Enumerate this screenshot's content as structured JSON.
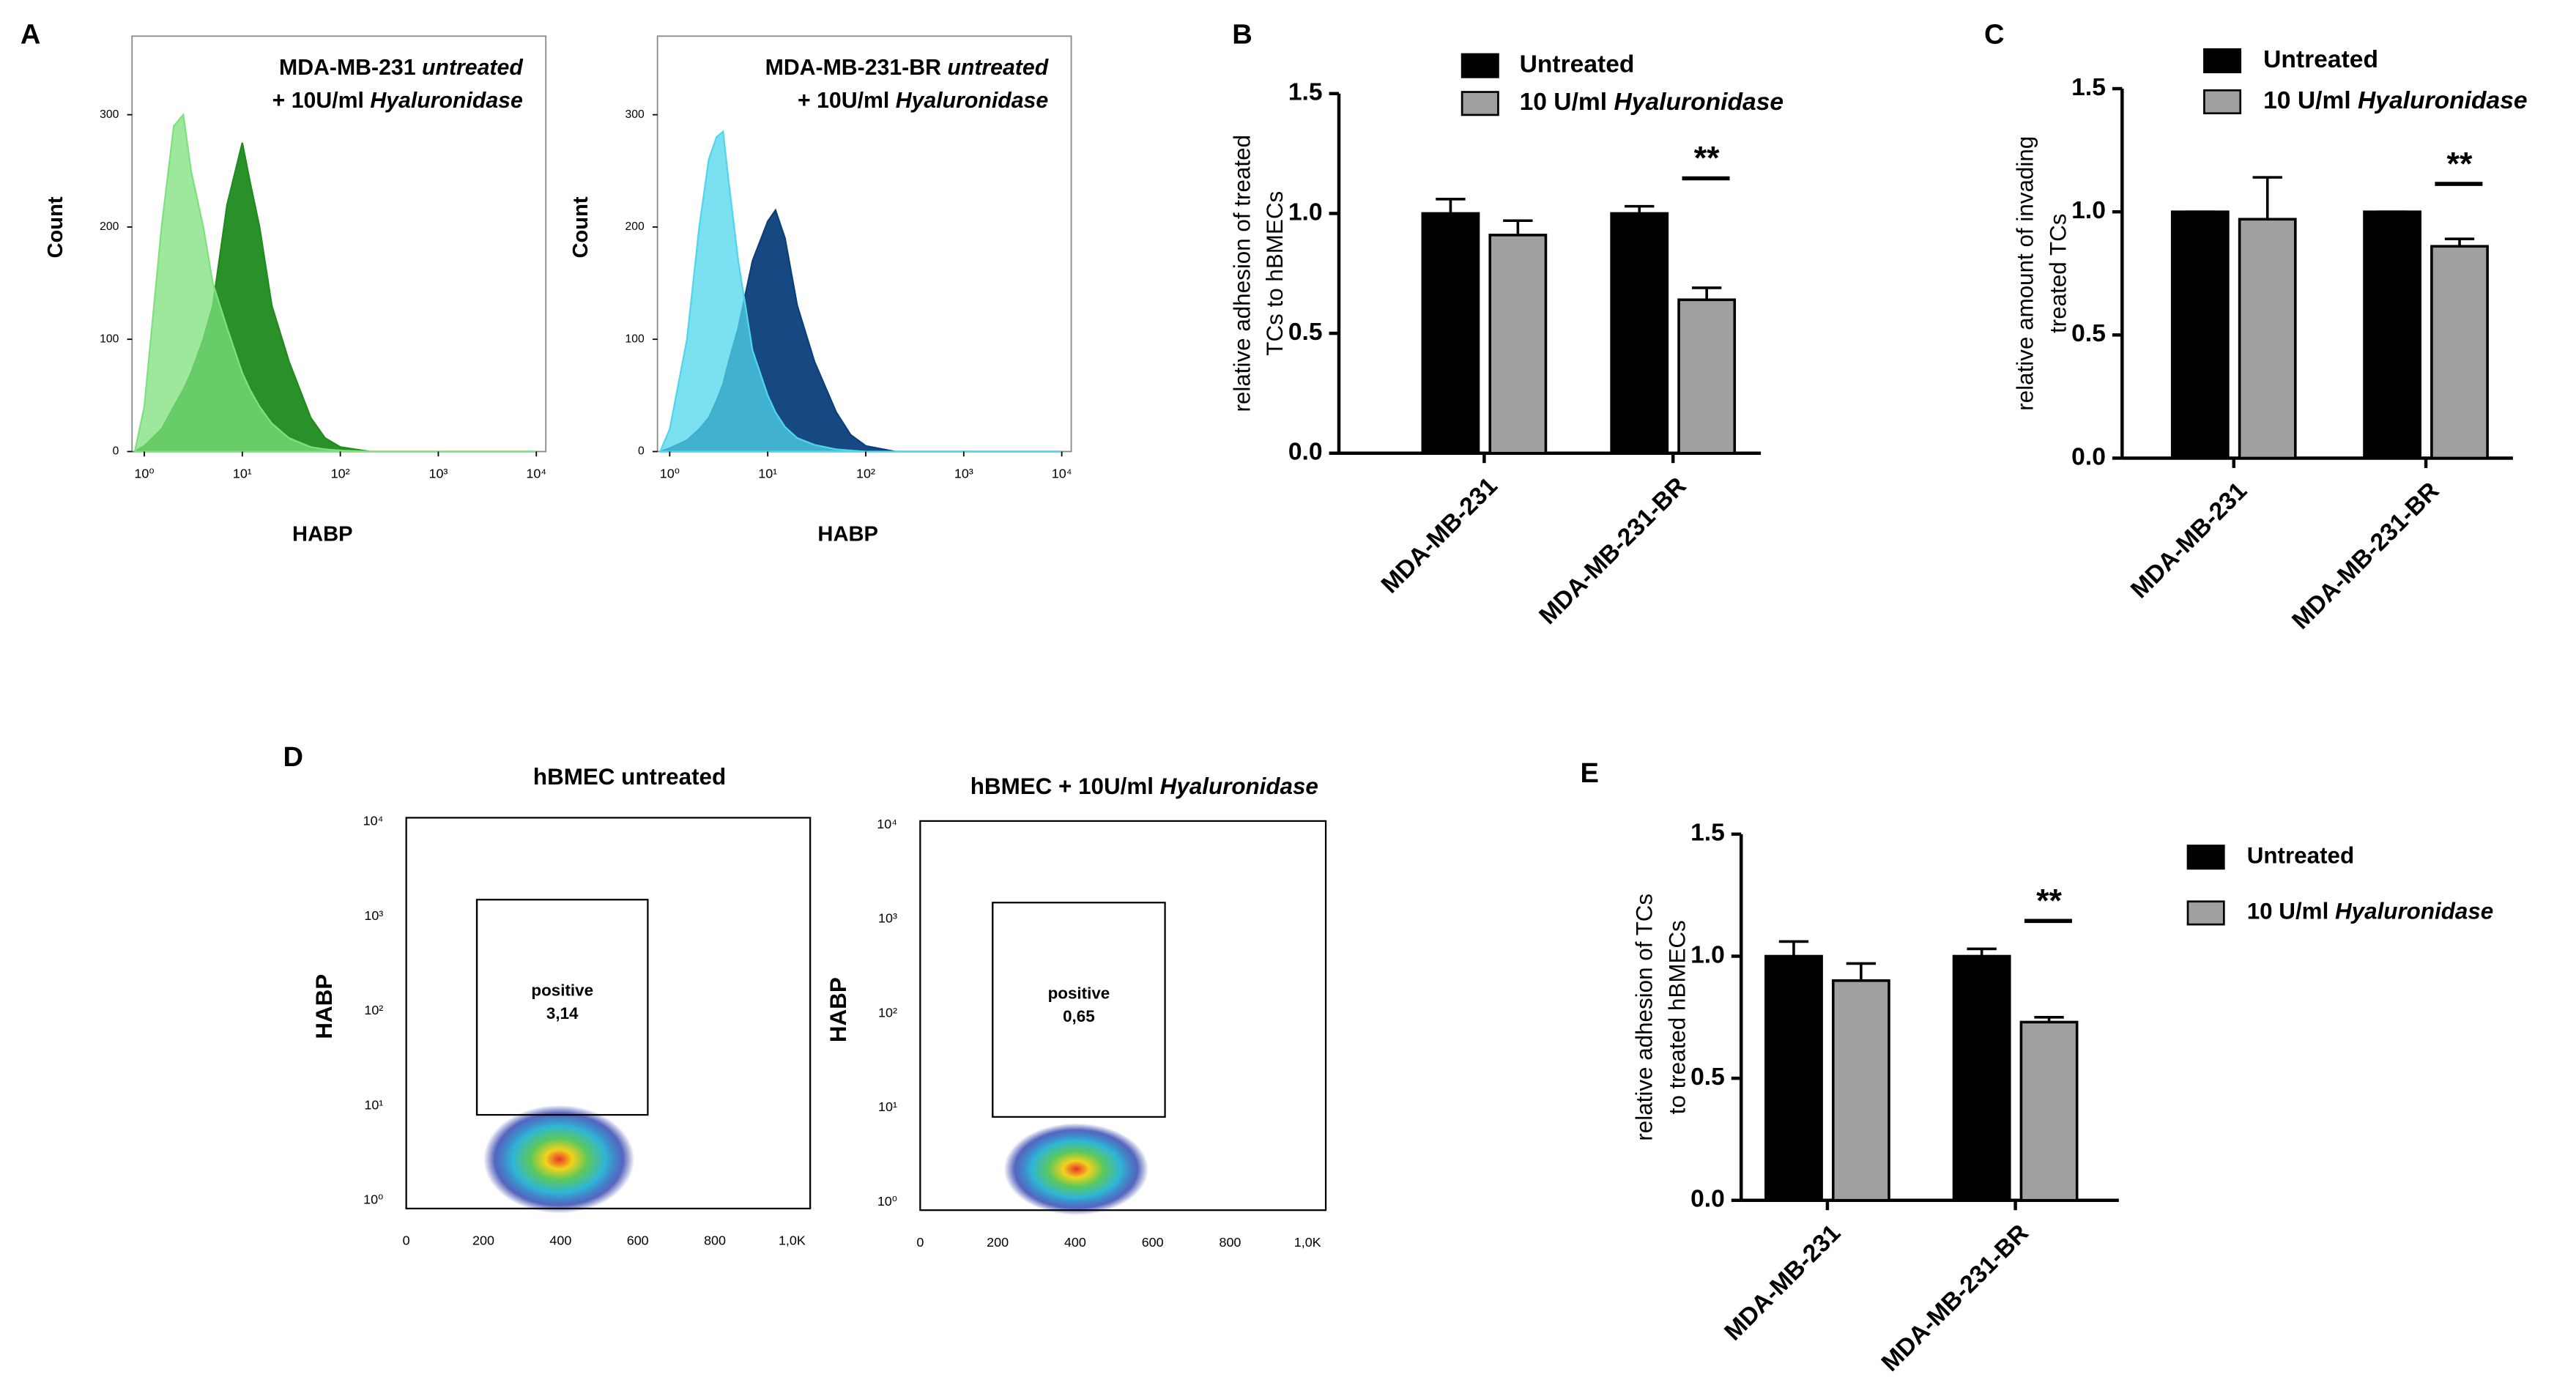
{
  "chart_data": [
    {
      "type": "histogram_area",
      "panel": "A",
      "x_label": "HABP",
      "y_label": "Count",
      "x_log": true,
      "x": [
        0.8,
        1,
        1.5,
        2,
        2.5,
        3,
        4,
        5,
        7,
        10,
        12,
        15,
        20,
        30,
        50,
        70,
        100,
        200,
        10000
      ],
      "xlim": [
        0.75,
        12500
      ],
      "ylim": [
        0,
        370
      ],
      "xticks": [
        {
          "value": 1,
          "label": "10⁰"
        },
        {
          "value": 10,
          "label": "10¹"
        },
        {
          "value": 100,
          "label": "10²"
        },
        {
          "value": 1000,
          "label": "10³"
        },
        {
          "value": 10000,
          "label": "10⁴"
        }
      ],
      "yticks": [
        0,
        100,
        200,
        300
      ],
      "series": [
        {
          "name": "MDA-MB-231 untreated",
          "color": "#1f8b1f",
          "label_color": "#3a8a3a",
          "values": [
            0,
            5,
            20,
            40,
            55,
            70,
            100,
            130,
            220,
            275,
            240,
            200,
            130,
            80,
            30,
            12,
            4,
            0,
            0
          ]
        },
        {
          "name": "+ 10U/ml Hyaluronidase",
          "color": "#7ee07e",
          "label_color": "#7ed67e",
          "values": [
            0,
            40,
            200,
            290,
            300,
            250,
            200,
            150,
            110,
            70,
            55,
            40,
            25,
            12,
            4,
            2,
            1,
            0,
            0
          ]
        }
      ]
    },
    {
      "type": "histogram_area",
      "x_label": "HABP",
      "y_label": "Count",
      "x_log": true,
      "x": [
        0.8,
        1,
        1.5,
        2,
        2.5,
        3,
        3.5,
        4,
        5,
        7,
        10,
        12,
        15,
        20,
        30,
        50,
        70,
        100,
        200,
        10000
      ],
      "xlim": [
        0.75,
        12500
      ],
      "ylim": [
        0,
        370
      ],
      "xticks": [
        {
          "value": 1,
          "label": "10⁰"
        },
        {
          "value": 10,
          "label": "10¹"
        },
        {
          "value": 100,
          "label": "10²"
        },
        {
          "value": 1000,
          "label": "10³"
        },
        {
          "value": 10000,
          "label": "10⁴"
        }
      ],
      "yticks": [
        0,
        100,
        200,
        300
      ],
      "series": [
        {
          "name": "MDA-MB-231-BR untreated",
          "color": "#0a3f7a",
          "label_color": "#2a5a9a",
          "values": [
            0,
            3,
            10,
            20,
            30,
            45,
            60,
            80,
            110,
            170,
            205,
            215,
            190,
            130,
            80,
            35,
            15,
            5,
            0,
            0
          ]
        },
        {
          "name": "+ 10U/ml Hyaluronidase",
          "color": "#4fd6ea",
          "label_color": "#2cc3dd",
          "values": [
            0,
            20,
            100,
            200,
            260,
            280,
            285,
            240,
            170,
            90,
            50,
            35,
            22,
            12,
            6,
            2,
            1,
            0,
            0,
            0
          ]
        }
      ]
    },
    {
      "type": "bar",
      "panel": "B",
      "y_label": [
        "relative adhesion of treated",
        "TCs to hBMECs"
      ],
      "categories": [
        "MDA-MB-231",
        "MDA-MB-231-BR"
      ],
      "ylim": [
        0,
        1.5
      ],
      "yticks": [
        {
          "value": 0,
          "label": "0.0"
        },
        0.5,
        {
          "value": 1,
          "label": "1.0"
        },
        1.5
      ],
      "series": [
        {
          "name": "Untreated",
          "color": "#000000",
          "values": [
            1.0,
            1.0
          ],
          "errors": [
            0.06,
            0.03
          ]
        },
        {
          "name": "10 U/ml Hyaluronidase",
          "color": "#a0a0a0",
          "values": [
            0.91,
            0.64
          ],
          "errors": [
            0.06,
            0.05
          ]
        }
      ],
      "annotations": [
        {
          "text": "**",
          "category": 1,
          "series": 1
        }
      ]
    },
    {
      "type": "bar",
      "panel": "C",
      "y_label": [
        "relative amount of invading",
        "treated TCs"
      ],
      "categories": [
        "MDA-MB-231",
        "MDA-MB-231-BR"
      ],
      "ylim": [
        0,
        1.5
      ],
      "yticks": [
        {
          "value": 0,
          "label": "0.0"
        },
        0.5,
        {
          "value": 1,
          "label": "1.0"
        },
        1.5
      ],
      "series": [
        {
          "name": "Untreated",
          "color": "#000000",
          "values": [
            1.0,
            1.0
          ],
          "errors": [
            0,
            0
          ]
        },
        {
          "name": "10 U/ml Hyaluronidase",
          "color": "#a0a0a0",
          "values": [
            0.97,
            0.86
          ],
          "errors": [
            0.17,
            0.03
          ]
        }
      ],
      "annotations": [
        {
          "text": "**",
          "category": 1,
          "series": 1
        }
      ]
    },
    {
      "type": "density",
      "panel": "D",
      "title": "hBMEC untreated",
      "y_label": "HABP",
      "y_log": true,
      "xlim": [
        0,
        1047
      ],
      "ylim": [
        0.82,
        11000
      ],
      "xticks": [
        0,
        200,
        400,
        600,
        800,
        {
          "value": 1000,
          "label": "1,0K"
        }
      ],
      "yticks": [
        {
          "value": 1,
          "label": "10⁰"
        },
        {
          "value": 10,
          "label": "10¹"
        },
        {
          "value": 100,
          "label": "10²"
        },
        {
          "value": 1000,
          "label": "10³"
        },
        {
          "value": 10000,
          "label": "10⁴"
        }
      ],
      "gate": {
        "label": "positive",
        "value": 3.14,
        "value_label": "3,14",
        "x": [
          183,
          626
        ],
        "y": [
          8,
          1500
        ]
      }
    },
    {
      "type": "density",
      "title": "hBMEC + 10U/ml Hyaluronidase",
      "y_label": "HABP",
      "y_log": true,
      "xlim": [
        0,
        1047
      ],
      "ylim": [
        0.82,
        11000
      ],
      "xticks": [
        0,
        200,
        400,
        600,
        800,
        {
          "value": 1000,
          "label": "1,0K"
        }
      ],
      "yticks": [
        {
          "value": 1,
          "label": "10⁰"
        },
        {
          "value": 10,
          "label": "10¹"
        },
        {
          "value": 100,
          "label": "10²"
        },
        {
          "value": 1000,
          "label": "10³"
        },
        {
          "value": 10000,
          "label": "10⁴"
        }
      ],
      "gate": {
        "label": "positive",
        "value": 0.65,
        "value_label": "0,65",
        "x": [
          187,
          632
        ],
        "y": [
          8,
          1500
        ]
      }
    },
    {
      "type": "bar",
      "panel": "E",
      "y_label": [
        "relative adhesion of TCs",
        "to treated hBMECs"
      ],
      "categories": [
        "MDA-MB-231",
        "MDA-MB-231-BR"
      ],
      "ylim": [
        0,
        1.5
      ],
      "yticks": [
        {
          "value": 0,
          "label": "0.0"
        },
        0.5,
        {
          "value": 1,
          "label": "1.0"
        },
        1.5
      ],
      "series": [
        {
          "name": "Untreated",
          "color": "#000000",
          "values": [
            1.0,
            1.0
          ],
          "errors": [
            0.06,
            0.03
          ]
        },
        {
          "name": "10 U/ml Hyaluronidase",
          "color": "#a0a0a0",
          "values": [
            0.9,
            0.73
          ],
          "errors": [
            0.07,
            0.02
          ]
        }
      ],
      "annotations": [
        {
          "text": "**",
          "category": 1,
          "series": 1
        }
      ]
    }
  ]
}
